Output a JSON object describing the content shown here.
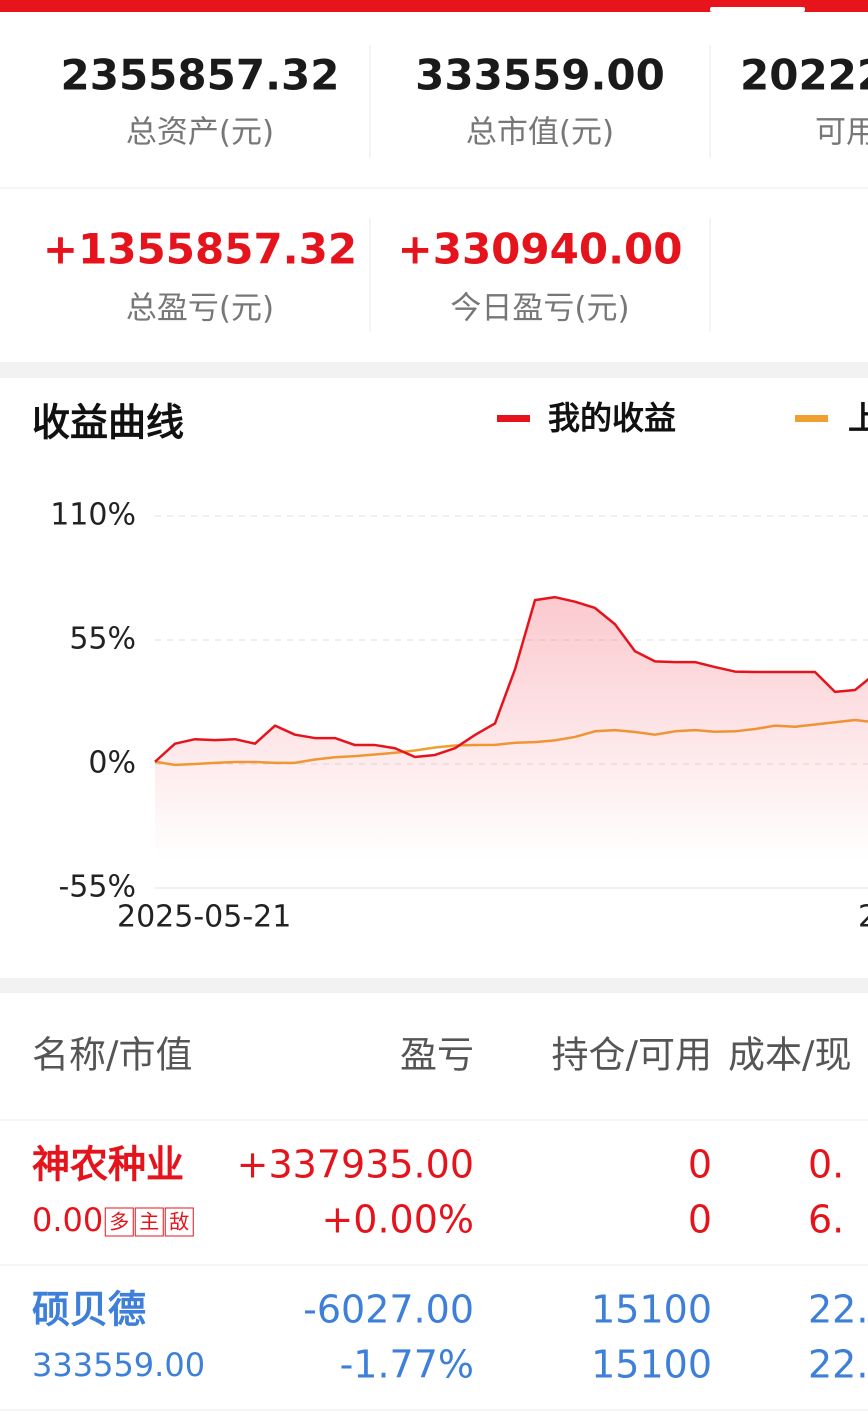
{
  "summary": {
    "row1": [
      {
        "value": "2355857.32",
        "label": "总资产(元)"
      },
      {
        "value": "333559.00",
        "label": "总市值(元)"
      },
      {
        "value": "20222",
        "label": "可用"
      }
    ],
    "row2": [
      {
        "value": "+1355857.32",
        "label": "总盈亏(元)"
      },
      {
        "value": "+330940.00",
        "label": "今日盈亏(元)"
      }
    ]
  },
  "chart_data": {
    "type": "line",
    "title": "收益曲线",
    "categories": [
      "2025-05-21",
      null,
      null,
      null,
      null,
      null,
      null,
      null,
      null,
      null,
      null,
      null,
      null,
      null,
      null,
      null,
      null,
      null,
      null,
      null,
      null,
      null,
      null,
      null,
      null,
      null,
      null,
      null,
      null,
      null,
      null,
      null,
      null,
      null,
      null,
      null,
      "2"
    ],
    "series": [
      {
        "name": "我的收益",
        "color": "#e5141c",
        "area": true,
        "values": [
          1,
          9,
          11,
          10.6,
          11,
          9,
          17,
          13,
          11.5,
          11.5,
          8.4,
          8.4,
          7,
          3.1,
          4,
          7,
          12.9,
          18,
          42,
          72.7,
          74,
          72,
          69.2,
          62,
          50,
          45.5,
          45.2,
          45.2,
          43,
          41,
          40.8,
          40.8,
          40.8,
          40.8,
          32,
          32.8,
          40
        ]
      },
      {
        "name": "上",
        "color": "#f0a030",
        "values": [
          1,
          -0.4,
          0,
          0.5,
          0.9,
          0.9,
          0.5,
          0.5,
          2,
          3,
          3.5,
          4.2,
          5,
          6,
          7.3,
          8.2,
          8.4,
          8.5,
          9.4,
          9.7,
          10.5,
          12,
          14.5,
          15,
          14.2,
          13,
          14.5,
          15,
          14.3,
          14.5,
          15.5,
          17,
          16.5,
          17.5,
          18.5,
          19.5,
          18.5
        ]
      }
    ],
    "ylim": [
      -55,
      110
    ],
    "yticks": [
      {
        "value": -55,
        "label": "-55%"
      },
      {
        "value": 0,
        "label": "0%"
      },
      {
        "value": 55,
        "label": "55%"
      },
      {
        "value": 110,
        "label": "110%"
      }
    ],
    "grid": true
  },
  "table": {
    "headers": [
      "名称/市值",
      "盈亏",
      "持仓/可用",
      "成本/现"
    ],
    "rows": [
      {
        "name": "神农种业",
        "market_value": "0.00",
        "tags": [
          "多",
          "主",
          "敌"
        ],
        "pnl": "+337935.00",
        "pnl_pct": "+0.00%",
        "position": "0",
        "available": "0",
        "cost": "0.",
        "price": "6.",
        "color": "#e5141c"
      },
      {
        "name": "硕贝德",
        "market_value": "333559.00",
        "tags": [],
        "pnl": "-6027.00",
        "pnl_pct": "-1.77%",
        "position": "15100",
        "available": "15100",
        "cost": "22.",
        "price": "22.",
        "color": "#3d7fd9"
      }
    ]
  }
}
